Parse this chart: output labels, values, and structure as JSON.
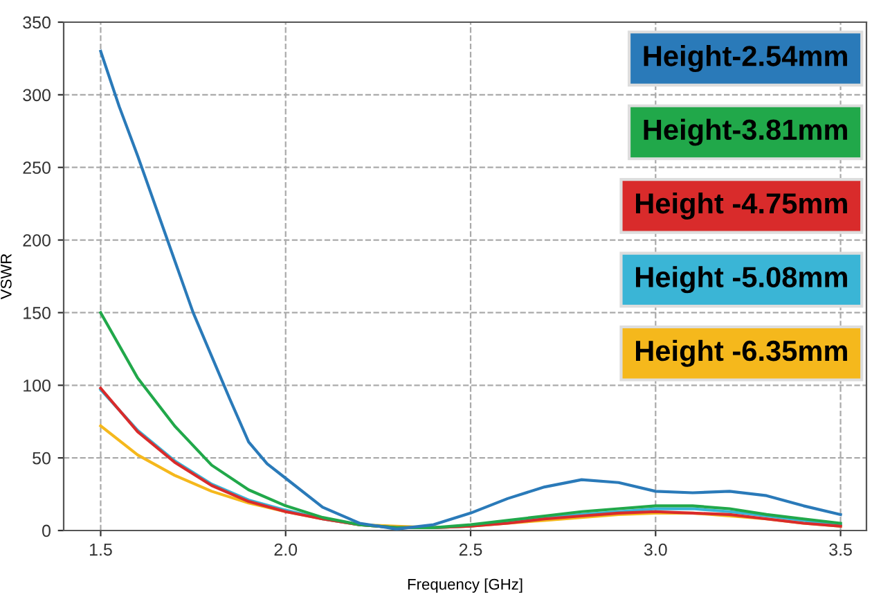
{
  "chart_data": {
    "type": "line",
    "xlabel": "Frequency [GHz]",
    "ylabel": "VSWR",
    "xlim": [
      1.4,
      3.57
    ],
    "ylim": [
      0,
      350
    ],
    "xticks": [
      {
        "value": 1.5,
        "label": "1.5"
      },
      {
        "value": 2.0,
        "label": "2.0"
      },
      {
        "value": 2.5,
        "label": "2.5"
      },
      {
        "value": 3.0,
        "label": "3.0"
      },
      {
        "value": 3.5,
        "label": "3.5"
      }
    ],
    "yticks": [
      0,
      50,
      100,
      150,
      200,
      250,
      300,
      350
    ],
    "grid": true,
    "legend": "top right",
    "line_style": "solid",
    "marker": "none",
    "series": [
      {
        "name": "Height-2.54mm",
        "color": "#2a7ab9",
        "x": [
          1.5,
          1.55,
          1.6,
          1.65,
          1.7,
          1.75,
          1.8,
          1.85,
          1.9,
          1.95,
          2.0,
          2.1,
          2.2,
          2.3,
          2.4,
          2.5,
          2.6,
          2.7,
          2.8,
          2.9,
          3.0,
          3.1,
          3.2,
          3.3,
          3.4,
          3.5
        ],
        "values": [
          330,
          292,
          258,
          222,
          186,
          150,
          120,
          90,
          61,
          46,
          36,
          16,
          5,
          1,
          4,
          12,
          22,
          30,
          35,
          33,
          27,
          26,
          27,
          24,
          17,
          11
        ]
      },
      {
        "name": "Height-3.81mm",
        "color": "#21a84a",
        "x": [
          1.5,
          1.6,
          1.7,
          1.8,
          1.9,
          2.0,
          2.1,
          2.2,
          2.3,
          2.4,
          2.5,
          2.6,
          2.7,
          2.8,
          2.9,
          3.0,
          3.1,
          3.2,
          3.3,
          3.4,
          3.5
        ],
        "values": [
          150,
          105,
          72,
          45,
          28,
          17,
          9,
          4,
          2,
          2,
          4,
          7,
          10,
          13,
          15,
          17,
          17,
          15,
          11,
          8,
          5
        ]
      },
      {
        "name": "Height -4.75mm",
        "color": "#d92b2b",
        "x": [
          1.5,
          1.6,
          1.7,
          1.8,
          1.9,
          2.0,
          2.1,
          2.2,
          2.3,
          2.4,
          2.5,
          2.6,
          2.7,
          2.8,
          2.9,
          3.0,
          3.1,
          3.2,
          3.3,
          3.4,
          3.5
        ],
        "values": [
          98,
          68,
          47,
          31,
          20,
          13,
          8,
          4,
          2,
          2,
          3,
          5,
          8,
          10,
          12,
          13,
          12,
          11,
          8,
          5,
          3
        ]
      },
      {
        "name": "Height -5.08mm",
        "color": "#3ab5d6",
        "x": [
          1.5,
          1.6,
          1.7,
          1.8,
          1.9,
          2.0,
          2.1,
          2.2,
          2.3,
          2.4,
          2.5,
          2.6,
          2.7,
          2.8,
          2.9,
          3.0,
          3.1,
          3.2,
          3.3,
          3.4,
          3.5
        ],
        "values": [
          97,
          69,
          48,
          32,
          21,
          14,
          8,
          4,
          2,
          2,
          3,
          6,
          9,
          11,
          13,
          15,
          15,
          13,
          10,
          7,
          4
        ]
      },
      {
        "name": "Height -6.35mm",
        "color": "#f5b81c",
        "x": [
          1.5,
          1.6,
          1.7,
          1.8,
          1.9,
          2.0,
          2.1,
          2.2,
          2.3,
          2.4,
          2.5,
          2.6,
          2.7,
          2.8,
          2.9,
          3.0,
          3.1,
          3.2,
          3.3,
          3.4,
          3.5
        ],
        "values": [
          72,
          52,
          38,
          27,
          19,
          13,
          8,
          4,
          3,
          2,
          3,
          5,
          7,
          9,
          11,
          12,
          12,
          10,
          8,
          5,
          3
        ]
      }
    ]
  }
}
